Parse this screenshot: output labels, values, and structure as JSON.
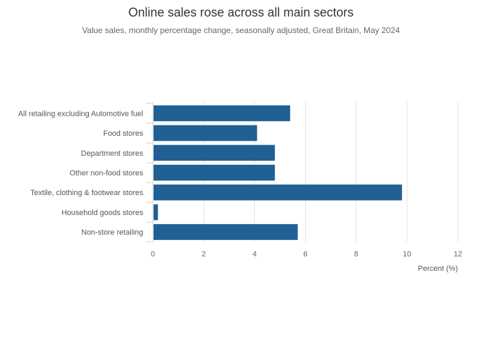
{
  "chart_data": {
    "type": "bar",
    "orientation": "horizontal",
    "title": "Online sales rose across all main sectors",
    "subtitle": "Value sales, monthly percentage change, seasonally adjusted, Great Britain, May 2024",
    "categories": [
      "All retailing excluding Automotive fuel",
      "Food stores",
      "Department stores",
      "Other non-food stores",
      "Textile, clothing & footwear stores",
      "Household goods stores",
      "Non-store retailing"
    ],
    "values": [
      5.4,
      4.1,
      4.8,
      4.8,
      9.8,
      0.2,
      5.7
    ],
    "xlabel": "Percent (%)",
    "ylabel": "",
    "xlim": [
      0,
      12
    ],
    "x_ticks": [
      0,
      2,
      4,
      6,
      8,
      10,
      12
    ],
    "grid": "vertical",
    "bar_color": "#206095"
  }
}
